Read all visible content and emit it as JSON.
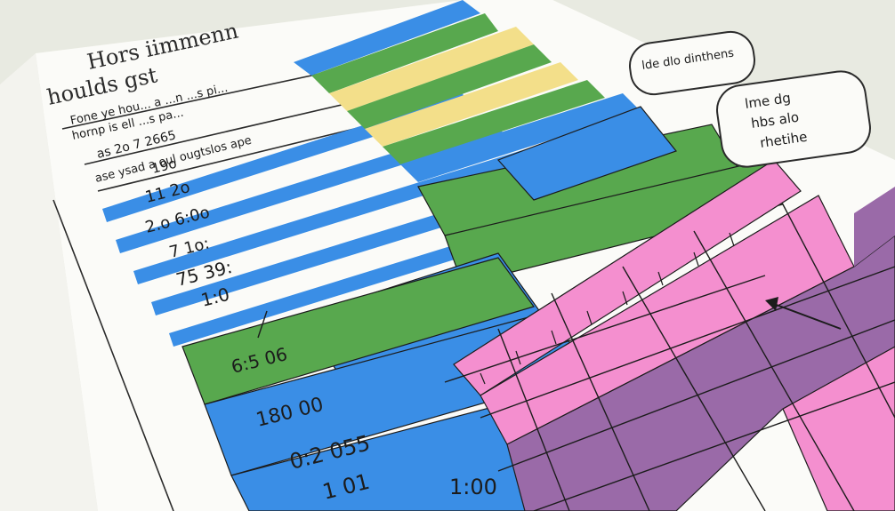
{
  "header": {
    "title_line1": "Hors iimmenn",
    "title_line2": "houlds gst",
    "sub_line1": "Fone ye hou... a ...n ...s pi...",
    "sub_line2": "hornp is ell ...s pa..."
  },
  "row_labels": [
    "as 2o 7 2665",
    "ase ysad a oul ougtslos ape",
    "19o",
    "11 2o",
    "2.o 6:0o",
    "7 1o:",
    "75 39:",
    "1:0",
    "6:5 06",
    "180 00",
    "0:2 055",
    "1 01",
    "1:00"
  ],
  "callouts": {
    "small": "lde dlo dinthens",
    "large_line1": "lme dg",
    "large_line2": "hbs alo",
    "large_line3": "rhetihe"
  },
  "colors": {
    "paper": "#fbfbf8",
    "blue": "#3a8ee6",
    "green": "#58a84e",
    "yellow": "#f3df8a",
    "pink": "#f48fcf",
    "purple": "#9a6aa8",
    "ink": "#1c1c1c"
  }
}
